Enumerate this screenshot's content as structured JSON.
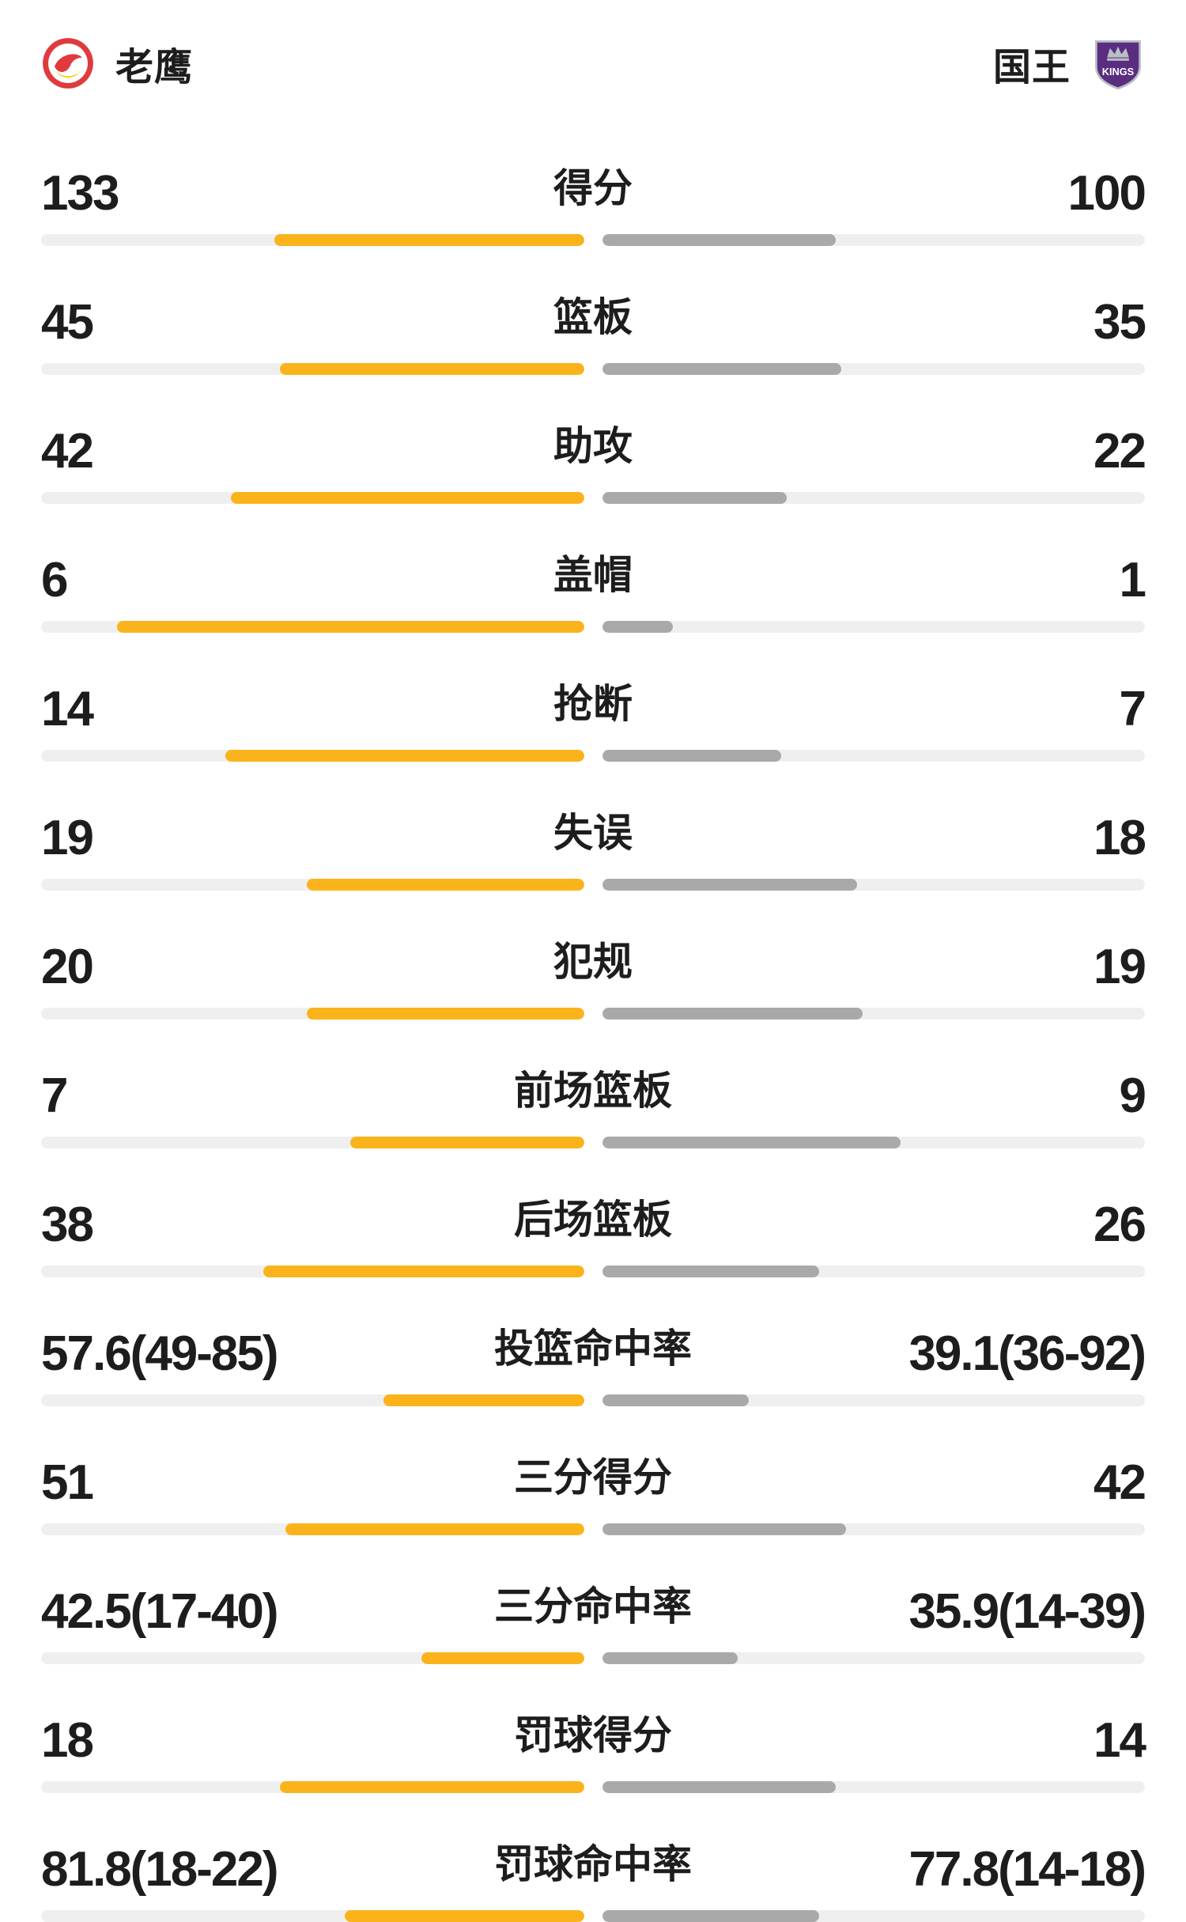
{
  "header": {
    "left_team": {
      "name": "老鹰"
    },
    "right_team": {
      "name": "国王",
      "logo_text": "KINGS"
    }
  },
  "colors": {
    "left_bar": "#FBB31B",
    "right_bar": "#A9A9A9",
    "track": "#EFEFEF",
    "text": "#1D1D1D",
    "hawks_red": "#E03A3E",
    "hawks_yellow": "#FFCD00",
    "kings_purple": "#5A2D81",
    "kings_silver": "#B9C0C4"
  },
  "chart_data": {
    "type": "bar",
    "orientation": "paired-horizontal",
    "teams": [
      "老鹰",
      "国王"
    ],
    "legend_position": "header",
    "rows": [
      {
        "label": "得分",
        "left": "133",
        "right": "100",
        "left_fill": 57,
        "right_fill": 43
      },
      {
        "label": "篮板",
        "left": "45",
        "right": "35",
        "left_fill": 56,
        "right_fill": 44
      },
      {
        "label": "助攻",
        "left": "42",
        "right": "22",
        "left_fill": 65,
        "right_fill": 34
      },
      {
        "label": "盖帽",
        "left": "6",
        "right": "1",
        "left_fill": 86,
        "right_fill": 13
      },
      {
        "label": "抢断",
        "left": "14",
        "right": "7",
        "left_fill": 66,
        "right_fill": 33
      },
      {
        "label": "失误",
        "left": "19",
        "right": "18",
        "left_fill": 51,
        "right_fill": 47
      },
      {
        "label": "犯规",
        "left": "20",
        "right": "19",
        "left_fill": 51,
        "right_fill": 48
      },
      {
        "label": "前场篮板",
        "left": "7",
        "right": "9",
        "left_fill": 43,
        "right_fill": 55
      },
      {
        "label": "后场篮板",
        "left": "38",
        "right": "26",
        "left_fill": 59,
        "right_fill": 40
      },
      {
        "label": "投篮命中率",
        "left": "57.6(49-85)",
        "right": "39.1(36-92)",
        "left_fill": 37,
        "right_fill": 27
      },
      {
        "label": "三分得分",
        "left": "51",
        "right": "42",
        "left_fill": 55,
        "right_fill": 45
      },
      {
        "label": "三分命中率",
        "left": "42.5(17-40)",
        "right": "35.9(14-39)",
        "left_fill": 30,
        "right_fill": 25
      },
      {
        "label": "罚球得分",
        "left": "18",
        "right": "14",
        "left_fill": 56,
        "right_fill": 43
      },
      {
        "label": "罚球命中率",
        "left": "81.8(18-22)",
        "right": "77.8(14-18)",
        "left_fill": 44,
        "right_fill": 40
      }
    ]
  }
}
